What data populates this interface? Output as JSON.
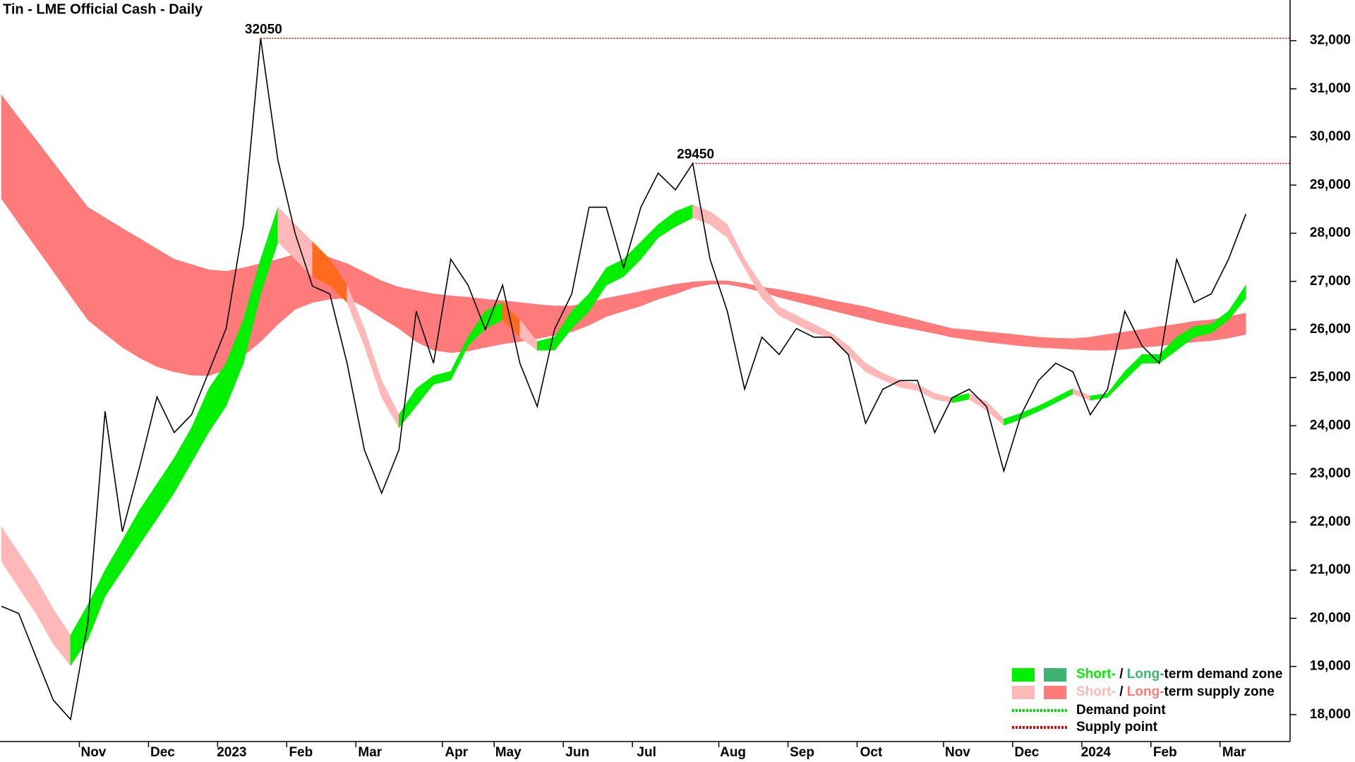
{
  "chart_data": {
    "type": "line",
    "title": "Tin - LME Official Cash - Daily",
    "categories": [
      null,
      null,
      null,
      null,
      null,
      "Nov",
      null,
      null,
      null,
      "Dec",
      null,
      null,
      null,
      "2023",
      null,
      null,
      null,
      "Feb",
      null,
      null,
      null,
      "Mar",
      null,
      null,
      null,
      null,
      "Apr",
      null,
      null,
      "May",
      null,
      null,
      null,
      "Jun",
      null,
      null,
      null,
      "Jul",
      null,
      null,
      null,
      null,
      "Aug",
      null,
      null,
      null,
      "Sep",
      null,
      null,
      null,
      "Oct",
      null,
      null,
      null,
      null,
      "Nov",
      null,
      null,
      null,
      "Dec",
      null,
      null,
      null,
      "2024",
      null,
      null,
      null,
      "Feb",
      null,
      null,
      null,
      "Mar",
      null
    ],
    "values": [
      20250,
      20100,
      19200,
      18300,
      17900,
      19900,
      24300,
      21800,
      23150,
      24600,
      23860,
      24230,
      25120,
      26020,
      28180,
      32050,
      29520,
      27990,
      26900,
      26740,
      25300,
      23500,
      22600,
      23500,
      26380,
      25300,
      27460,
      26920,
      26000,
      26920,
      25300,
      24400,
      26000,
      26740,
      28540,
      28540,
      27280,
      28540,
      29250,
      28900,
      29450,
      27460,
      26380,
      24760,
      25840,
      25480,
      26020,
      25840,
      25840,
      25480,
      24050,
      24760,
      24940,
      24940,
      23860,
      24580,
      24760,
      24400,
      23060,
      24230,
      24940,
      25300,
      25120,
      24230,
      24760,
      26380,
      25660,
      25300,
      27460,
      26560,
      26740,
      27460,
      28400
    ],
    "color": "#000000",
    "short_band": {
      "upper": [
        21900,
        21360,
        20820,
        20190,
        19650,
        20280,
        21000,
        21620,
        22250,
        22790,
        23330,
        23960,
        24770,
        25300,
        26200,
        27460,
        28540,
        28180,
        27820,
        27460,
        26920,
        26020,
        24940,
        24230,
        24770,
        25040,
        25130,
        25840,
        26380,
        26560,
        26200,
        25750,
        25840,
        26380,
        26740,
        27280,
        27460,
        27820,
        28180,
        28450,
        28590,
        28450,
        28180,
        27460,
        26920,
        26470,
        26290,
        26110,
        25930,
        25660,
        25300,
        25090,
        24940,
        24860,
        24670,
        24590,
        24670,
        24500,
        24140,
        24260,
        24410,
        24590,
        24770,
        24620,
        24670,
        25130,
        25480,
        25480,
        25840,
        26060,
        26110,
        26380,
        26920
      ],
      "lower": [
        21180,
        20640,
        20100,
        19470,
        19020,
        19560,
        20460,
        21000,
        21540,
        22070,
        22610,
        23240,
        23870,
        24410,
        25300,
        26740,
        27820,
        27460,
        27100,
        26920,
        26560,
        25660,
        24590,
        23960,
        24410,
        24860,
        24950,
        25660,
        26020,
        26200,
        25840,
        25570,
        25570,
        26020,
        26380,
        26920,
        27100,
        27460,
        27910,
        28140,
        28320,
        28180,
        27910,
        27280,
        26650,
        26290,
        26110,
        25930,
        25810,
        25480,
        25120,
        24950,
        24800,
        24730,
        24550,
        24480,
        24550,
        24320,
        24010,
        24140,
        24300,
        24480,
        24660,
        24530,
        24590,
        24950,
        25300,
        25300,
        25570,
        25840,
        25930,
        26200,
        26650
      ]
    },
    "long_band": {
      "upper": [
        30870,
        30400,
        29940,
        29470,
        29000,
        28540,
        28320,
        28100,
        27890,
        27670,
        27460,
        27350,
        27240,
        27210,
        27280,
        27370,
        27460,
        27560,
        27640,
        27490,
        27370,
        27190,
        27010,
        26880,
        26810,
        26740,
        26700,
        26670,
        26630,
        26600,
        26560,
        26520,
        26490,
        26490,
        26560,
        26650,
        26720,
        26790,
        26870,
        26940,
        26990,
        27010,
        27010,
        26960,
        26880,
        26830,
        26760,
        26690,
        26610,
        26540,
        26470,
        26380,
        26290,
        26200,
        26110,
        26020,
        25990,
        25950,
        25920,
        25880,
        25840,
        25820,
        25810,
        25840,
        25900,
        25950,
        26000,
        26060,
        26110,
        26170,
        26200,
        26270,
        26340
      ],
      "lower": [
        28720,
        28210,
        27710,
        27210,
        26700,
        26200,
        25910,
        25630,
        25410,
        25230,
        25120,
        25050,
        25040,
        25160,
        25450,
        25750,
        26110,
        26420,
        26560,
        26630,
        26650,
        26470,
        26240,
        26020,
        25750,
        25570,
        25520,
        25550,
        25630,
        25700,
        25750,
        25810,
        25880,
        25950,
        26090,
        26270,
        26380,
        26490,
        26630,
        26740,
        26870,
        26940,
        26940,
        26870,
        26780,
        26670,
        26580,
        26490,
        26400,
        26310,
        26220,
        26130,
        26060,
        25990,
        25920,
        25840,
        25790,
        25740,
        25700,
        25660,
        25630,
        25610,
        25590,
        25570,
        25570,
        25590,
        25630,
        25660,
        25700,
        25740,
        25770,
        25820,
        25900
      ]
    },
    "overlap_color": "#ff6a1f",
    "peaks": [
      32050,
      29450
    ],
    "ylim": [
      17440,
      32845
    ],
    "yticks": [
      {
        "value": 18000,
        "label": "18,000"
      },
      {
        "value": 19000,
        "label": "19,000"
      },
      {
        "value": 20000,
        "label": "20,000"
      },
      {
        "value": 21000,
        "label": "21,000"
      },
      {
        "value": 22000,
        "label": "22,000"
      },
      {
        "value": 23000,
        "label": "23,000"
      },
      {
        "value": 24000,
        "label": "24,000"
      },
      {
        "value": 25000,
        "label": "25,000"
      },
      {
        "value": 26000,
        "label": "26,000"
      },
      {
        "value": 27000,
        "label": "27,000"
      },
      {
        "value": 28000,
        "label": "28,000"
      },
      {
        "value": 29000,
        "label": "29,000"
      },
      {
        "value": 30000,
        "label": "30,000"
      },
      {
        "value": 31000,
        "label": "31,000"
      },
      {
        "value": 32000,
        "label": "32,000"
      }
    ],
    "legend": {
      "zones": [
        {
          "parts": [
            "Short-",
            " / ",
            "Long-",
            "term demand zone"
          ],
          "colors": [
            "#00f000",
            "#3cb371"
          ]
        },
        {
          "parts": [
            "Short-",
            " / ",
            "Long-",
            "term supply zone"
          ],
          "colors": [
            "#ffb8b8",
            "#ff7b7b"
          ]
        }
      ],
      "points": [
        {
          "label": "Demand point",
          "color": "#00e000"
        },
        {
          "label": "Supply point",
          "color": "#e00000"
        }
      ]
    }
  }
}
